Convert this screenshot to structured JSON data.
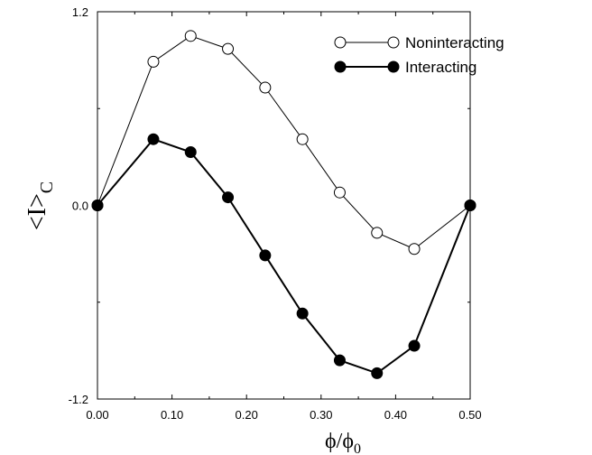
{
  "chart_data": {
    "type": "line",
    "xlabel": {
      "base": "ϕ/ϕ",
      "sub": "0"
    },
    "ylabel": {
      "base": "<I>",
      "sub": "C"
    },
    "xlim": [
      0.0,
      0.5
    ],
    "ylim": [
      -1.2,
      1.2
    ],
    "x_ticks": [
      {
        "value": 0.0,
        "label": "0.00"
      },
      {
        "value": 0.1,
        "label": "0.10"
      },
      {
        "value": 0.2,
        "label": "0.20"
      },
      {
        "value": 0.3,
        "label": "0.30"
      },
      {
        "value": 0.4,
        "label": "0.40"
      },
      {
        "value": 0.5,
        "label": "0.50"
      }
    ],
    "y_ticks": [
      {
        "value": 1.2,
        "label": "1.2"
      },
      {
        "value": 0.0,
        "label": "0.0"
      },
      {
        "value": -1.2,
        "label": "-1.2"
      }
    ],
    "grid": false,
    "legend_position": "top-right",
    "series": [
      {
        "name": "Noninteracting",
        "marker": "open-circle",
        "color": "#000000",
        "x": [
          0.0,
          0.075,
          0.125,
          0.175,
          0.225,
          0.275,
          0.325,
          0.375,
          0.425,
          0.5
        ],
        "y": [
          0.0,
          0.89,
          1.05,
          0.97,
          0.73,
          0.41,
          0.08,
          -0.17,
          -0.27,
          0.0
        ]
      },
      {
        "name": "Interacting",
        "marker": "filled-circle",
        "color": "#000000",
        "x": [
          0.0,
          0.075,
          0.125,
          0.175,
          0.225,
          0.275,
          0.325,
          0.375,
          0.425,
          0.5
        ],
        "y": [
          0.0,
          0.41,
          0.33,
          0.05,
          -0.31,
          -0.67,
          -0.96,
          -1.04,
          -0.87,
          0.0
        ]
      }
    ]
  }
}
